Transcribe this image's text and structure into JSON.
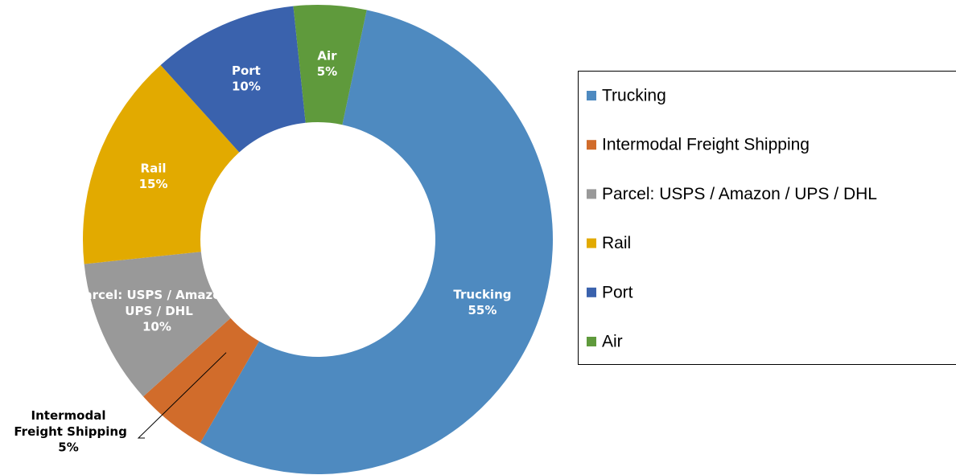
{
  "chart_data": {
    "type": "donut",
    "categories": [
      "Trucking",
      "Intermodal Freight Shipping",
      "Parcel: USPS / Amazon / UPS / DHL",
      "Rail",
      "Port",
      "Air"
    ],
    "values": [
      55,
      5,
      10,
      15,
      10,
      5
    ],
    "value_labels": [
      "55%",
      "5%",
      "10%",
      "15%",
      "10%",
      "5%"
    ],
    "colors": [
      "#4e8ac0",
      "#d16c2b",
      "#999999",
      "#e2aa00",
      "#3a62ad",
      "#5f9a3c"
    ],
    "legend": "right"
  }
}
